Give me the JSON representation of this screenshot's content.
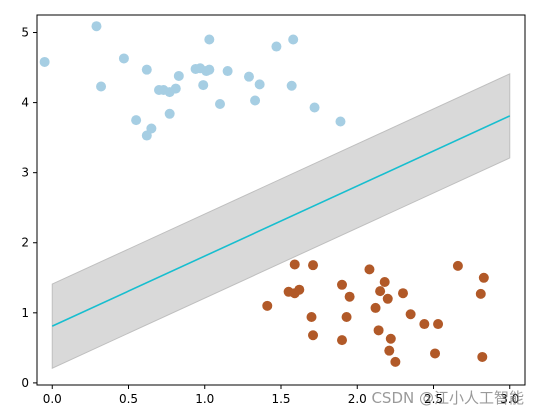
{
  "chart_data": {
    "type": "scatter",
    "xlim": [
      -0.1,
      3.1
    ],
    "ylim": [
      -0.03,
      5.25
    ],
    "xticks": [
      0.0,
      0.5,
      1.0,
      1.5,
      2.0,
      2.5,
      3.0
    ],
    "xtick_labels": [
      "0.0",
      "0.5",
      "1.0",
      "1.5",
      "2.0",
      "2.5",
      "3.0"
    ],
    "yticks": [
      0,
      1,
      2,
      3,
      4,
      5
    ],
    "ytick_labels": [
      "0",
      "1",
      "2",
      "3",
      "4",
      "5"
    ],
    "grid": false,
    "series": [
      {
        "color": "#a6cee3",
        "points": [
          [
            -0.05,
            4.58
          ],
          [
            0.29,
            5.09
          ],
          [
            0.32,
            4.23
          ],
          [
            0.47,
            4.63
          ],
          [
            0.55,
            3.75
          ],
          [
            0.62,
            4.47
          ],
          [
            0.62,
            3.53
          ],
          [
            0.65,
            3.63
          ],
          [
            0.7,
            4.18
          ],
          [
            0.73,
            4.18
          ],
          [
            0.77,
            3.84
          ],
          [
            0.77,
            4.15
          ],
          [
            0.81,
            4.2
          ],
          [
            0.83,
            4.38
          ],
          [
            0.94,
            4.48
          ],
          [
            0.97,
            4.49
          ],
          [
            0.99,
            4.25
          ],
          [
            1.01,
            4.45
          ],
          [
            1.03,
            4.9
          ],
          [
            1.03,
            4.47
          ],
          [
            1.1,
            3.98
          ],
          [
            1.15,
            4.45
          ],
          [
            1.29,
            4.37
          ],
          [
            1.33,
            4.03
          ],
          [
            1.36,
            4.26
          ],
          [
            1.47,
            4.8
          ],
          [
            1.57,
            4.24
          ],
          [
            1.58,
            4.9
          ],
          [
            1.72,
            3.93
          ],
          [
            1.89,
            3.73
          ]
        ]
      },
      {
        "color": "#b15928",
        "points": [
          [
            1.41,
            1.1
          ],
          [
            1.55,
            1.3
          ],
          [
            1.59,
            1.69
          ],
          [
            1.59,
            1.28
          ],
          [
            1.62,
            1.33
          ],
          [
            1.7,
            0.94
          ],
          [
            1.71,
            1.68
          ],
          [
            1.71,
            0.68
          ],
          [
            1.9,
            1.4
          ],
          [
            1.9,
            0.61
          ],
          [
            1.93,
            0.94
          ],
          [
            1.95,
            1.23
          ],
          [
            2.08,
            1.62
          ],
          [
            2.12,
            1.07
          ],
          [
            2.14,
            0.75
          ],
          [
            2.15,
            1.31
          ],
          [
            2.18,
            1.44
          ],
          [
            2.2,
            1.2
          ],
          [
            2.21,
            0.46
          ],
          [
            2.22,
            0.63
          ],
          [
            2.25,
            0.3
          ],
          [
            2.3,
            1.28
          ],
          [
            2.35,
            0.98
          ],
          [
            2.44,
            0.84
          ],
          [
            2.51,
            0.42
          ],
          [
            2.53,
            0.84
          ],
          [
            2.66,
            1.67
          ],
          [
            2.81,
            1.27
          ],
          [
            2.83,
            1.5
          ],
          [
            2.82,
            0.37
          ]
        ]
      }
    ],
    "line": {
      "color": "#17becf",
      "points": [
        [
          0.0,
          0.81
        ],
        [
          3.0,
          3.81
        ]
      ]
    },
    "band": {
      "color": "#d9d9d9",
      "edge_color": "#bfbfbf",
      "upper": [
        [
          0.0,
          1.41
        ],
        [
          3.0,
          4.41
        ]
      ],
      "lower": [
        [
          0.0,
          0.21
        ],
        [
          3.0,
          3.21
        ]
      ]
    }
  },
  "watermark": "CSDN @江小人工智能"
}
